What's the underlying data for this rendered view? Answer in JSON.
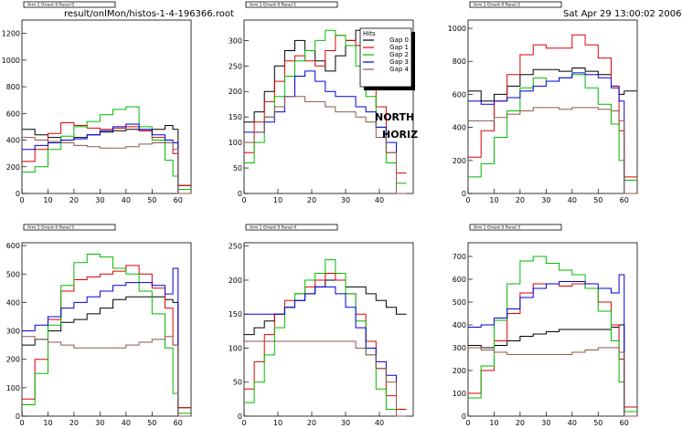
{
  "header": {
    "file_path": "result/onlMon/histos-1-4-196366.root",
    "timestamp": "Sat Apr 29 13:00:02 2006"
  },
  "annotations": {
    "north": "NORTH",
    "horiz": "HORIZ"
  },
  "legend": {
    "title": "Hits",
    "entries": [
      {
        "name": "Gap 0",
        "color": "#000000"
      },
      {
        "name": "Gap 1",
        "color": "#dd0000"
      },
      {
        "name": "Gap 2",
        "color": "#00bb00"
      },
      {
        "name": "Gap 3",
        "color": "#0000dd"
      },
      {
        "name": "Gap 4",
        "color": "#8b5a4b"
      }
    ]
  },
  "chart_data": [
    {
      "type": "line",
      "step": true,
      "title": "Arm 1 Orient 0 Panel 0",
      "xlim": [
        0,
        65
      ],
      "ylim": [
        0,
        1300
      ],
      "xticks": [
        0,
        10,
        20,
        30,
        40,
        50,
        60
      ],
      "yticks": [
        0,
        200,
        400,
        600,
        800,
        1000,
        1200
      ],
      "x": [
        0,
        5,
        10,
        15,
        20,
        25,
        30,
        35,
        40,
        45,
        50,
        55,
        58,
        60
      ],
      "series": [
        {
          "name": "Gap 0",
          "values": [
            480,
            440,
            420,
            400,
            420,
            440,
            460,
            470,
            480,
            470,
            480,
            510,
            480,
            60
          ]
        },
        {
          "name": "Gap 1",
          "values": [
            240,
            330,
            450,
            530,
            510,
            490,
            480,
            490,
            500,
            470,
            420,
            380,
            300,
            60
          ]
        },
        {
          "name": "Gap 2",
          "values": [
            160,
            200,
            330,
            430,
            500,
            540,
            590,
            630,
            650,
            500,
            400,
            250,
            130,
            30
          ]
        },
        {
          "name": "Gap 3",
          "values": [
            330,
            360,
            380,
            400,
            410,
            440,
            470,
            500,
            520,
            480,
            440,
            400,
            380,
            0
          ]
        },
        {
          "name": "Gap 4",
          "values": [
            420,
            400,
            390,
            380,
            360,
            350,
            340,
            340,
            350,
            370,
            380,
            380,
            330,
            0
          ]
        }
      ]
    },
    {
      "type": "line",
      "step": true,
      "title": "Arm 1 Orient 0 Panel 1",
      "xlim": [
        0,
        50
      ],
      "ylim": [
        0,
        340
      ],
      "xticks": [
        0,
        10,
        20,
        30,
        40
      ],
      "yticks": [
        0,
        50,
        100,
        150,
        200,
        250,
        300
      ],
      "x": [
        0,
        3,
        6,
        9,
        12,
        15,
        18,
        21,
        24,
        27,
        30,
        33,
        36,
        39,
        42,
        45
      ],
      "series": [
        {
          "name": "Gap 0",
          "values": [
            140,
            160,
            200,
            250,
            280,
            300,
            280,
            260,
            240,
            270,
            300,
            320,
            300,
            280,
            250,
            240
          ]
        },
        {
          "name": "Gap 1",
          "values": [
            80,
            140,
            180,
            220,
            260,
            270,
            260,
            250,
            280,
            310,
            300,
            290,
            230,
            170,
            80,
            40
          ]
        },
        {
          "name": "Gap 2",
          "values": [
            60,
            100,
            150,
            190,
            230,
            260,
            280,
            300,
            320,
            310,
            290,
            250,
            190,
            130,
            60,
            20
          ]
        },
        {
          "name": "Gap 3",
          "values": [
            120,
            120,
            140,
            160,
            190,
            230,
            240,
            220,
            200,
            190,
            190,
            170,
            160,
            130,
            100,
            0
          ]
        },
        {
          "name": "Gap 4",
          "values": [
            100,
            120,
            150,
            170,
            190,
            190,
            180,
            180,
            170,
            160,
            160,
            150,
            140,
            110,
            80,
            0
          ]
        }
      ]
    },
    {
      "type": "line",
      "step": true,
      "title": "Arm 1 Orient 0 Panel 2",
      "xlim": [
        0,
        65
      ],
      "ylim": [
        0,
        1050
      ],
      "xticks": [
        0,
        10,
        20,
        30,
        40,
        50,
        60
      ],
      "yticks": [
        0,
        200,
        400,
        600,
        800,
        1000
      ],
      "x": [
        0,
        5,
        10,
        15,
        20,
        25,
        30,
        35,
        40,
        45,
        50,
        55,
        58,
        60
      ],
      "series": [
        {
          "name": "Gap 0",
          "values": [
            620,
            560,
            600,
            650,
            720,
            750,
            750,
            740,
            760,
            740,
            720,
            650,
            600,
            620
          ]
        },
        {
          "name": "Gap 1",
          "values": [
            220,
            380,
            560,
            720,
            840,
            900,
            880,
            880,
            960,
            900,
            820,
            650,
            380,
            100
          ]
        },
        {
          "name": "Gap 2",
          "values": [
            100,
            180,
            340,
            500,
            640,
            700,
            680,
            700,
            720,
            640,
            540,
            420,
            200,
            80
          ]
        },
        {
          "name": "Gap 3",
          "values": [
            560,
            540,
            560,
            580,
            620,
            650,
            680,
            700,
            730,
            720,
            700,
            640,
            560,
            0
          ]
        },
        {
          "name": "Gap 4",
          "values": [
            440,
            440,
            460,
            480,
            500,
            520,
            520,
            510,
            520,
            520,
            510,
            500,
            440,
            0
          ]
        }
      ]
    },
    {
      "type": "line",
      "step": true,
      "title": "Arm 1 Orient 0 Panel 5",
      "xlim": [
        0,
        65
      ],
      "ylim": [
        0,
        610
      ],
      "xticks": [
        0,
        10,
        20,
        30,
        40,
        50,
        60
      ],
      "yticks": [
        0,
        100,
        200,
        300,
        400,
        500,
        600
      ],
      "x": [
        0,
        5,
        10,
        15,
        20,
        25,
        30,
        35,
        40,
        45,
        50,
        55,
        58,
        60
      ],
      "series": [
        {
          "name": "Gap 0",
          "values": [
            250,
            270,
            300,
            330,
            340,
            360,
            380,
            410,
            420,
            420,
            420,
            410,
            400,
            30
          ]
        },
        {
          "name": "Gap 1",
          "values": [
            60,
            200,
            340,
            440,
            480,
            490,
            500,
            510,
            530,
            500,
            450,
            380,
            250,
            30
          ]
        },
        {
          "name": "Gap 2",
          "values": [
            40,
            150,
            320,
            460,
            540,
            570,
            560,
            520,
            500,
            440,
            360,
            240,
            80,
            10
          ]
        },
        {
          "name": "Gap 3",
          "values": [
            300,
            320,
            350,
            380,
            400,
            420,
            440,
            460,
            470,
            470,
            460,
            430,
            520,
            0
          ]
        },
        {
          "name": "Gap 4",
          "values": [
            280,
            270,
            260,
            250,
            240,
            240,
            240,
            240,
            250,
            260,
            270,
            280,
            250,
            0
          ]
        }
      ]
    },
    {
      "type": "line",
      "step": true,
      "title": "Arm 1 Orient 0 Panel 4",
      "xlim": [
        0,
        50
      ],
      "ylim": [
        0,
        255
      ],
      "xticks": [
        0,
        10,
        20,
        30,
        40
      ],
      "yticks": [
        0,
        50,
        100,
        150,
        200,
        250
      ],
      "x": [
        0,
        3,
        6,
        9,
        12,
        15,
        18,
        21,
        24,
        27,
        30,
        33,
        36,
        39,
        42,
        45
      ],
      "series": [
        {
          "name": "Gap 0",
          "values": [
            120,
            130,
            140,
            150,
            160,
            170,
            180,
            190,
            200,
            200,
            190,
            190,
            180,
            170,
            160,
            150
          ]
        },
        {
          "name": "Gap 1",
          "values": [
            40,
            80,
            120,
            150,
            170,
            180,
            190,
            200,
            210,
            200,
            180,
            150,
            110,
            70,
            30,
            10
          ]
        },
        {
          "name": "Gap 2",
          "values": [
            20,
            50,
            90,
            130,
            160,
            180,
            200,
            210,
            230,
            210,
            180,
            140,
            90,
            40,
            10,
            0
          ]
        },
        {
          "name": "Gap 3",
          "values": [
            150,
            150,
            150,
            150,
            160,
            170,
            180,
            190,
            190,
            180,
            160,
            130,
            100,
            80,
            60,
            0
          ]
        },
        {
          "name": "Gap 4",
          "values": [
            110,
            110,
            110,
            110,
            110,
            110,
            110,
            110,
            110,
            110,
            110,
            100,
            90,
            70,
            50,
            0
          ]
        }
      ]
    },
    {
      "type": "line",
      "step": true,
      "title": "Arm 1 Orient 0 Panel 3",
      "xlim": [
        0,
        65
      ],
      "ylim": [
        0,
        760
      ],
      "xticks": [
        0,
        10,
        20,
        30,
        40,
        50,
        60
      ],
      "yticks": [
        0,
        100,
        200,
        300,
        400,
        500,
        600,
        700
      ],
      "x": [
        0,
        5,
        10,
        15,
        20,
        25,
        30,
        35,
        40,
        45,
        50,
        55,
        58,
        60
      ],
      "series": [
        {
          "name": "Gap 0",
          "values": [
            310,
            300,
            310,
            330,
            350,
            360,
            370,
            380,
            380,
            380,
            380,
            390,
            400,
            20
          ]
        },
        {
          "name": "Gap 1",
          "values": [
            100,
            200,
            330,
            450,
            540,
            580,
            580,
            570,
            580,
            560,
            500,
            400,
            250,
            40
          ]
        },
        {
          "name": "Gap 2",
          "values": [
            80,
            220,
            420,
            580,
            680,
            700,
            670,
            640,
            620,
            560,
            460,
            330,
            150,
            20
          ]
        },
        {
          "name": "Gap 3",
          "values": [
            390,
            400,
            430,
            470,
            520,
            560,
            580,
            590,
            590,
            580,
            560,
            540,
            620,
            0
          ]
        },
        {
          "name": "Gap 4",
          "values": [
            300,
            290,
            280,
            270,
            270,
            270,
            270,
            270,
            280,
            290,
            300,
            300,
            280,
            0
          ]
        }
      ]
    }
  ]
}
